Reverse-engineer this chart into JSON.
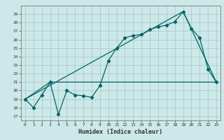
{
  "xlabel": "Humidex (Indice chaleur)",
  "bg_color": "#cce8e8",
  "grid_color": "#aacccc",
  "line_color": "#006666",
  "xlim": [
    -0.5,
    23.5
  ],
  "ylim": [
    16.5,
    30.0
  ],
  "yticks": [
    17,
    18,
    19,
    20,
    21,
    22,
    23,
    24,
    25,
    26,
    27,
    28,
    29
  ],
  "xticks": [
    0,
    1,
    2,
    3,
    4,
    5,
    6,
    7,
    8,
    9,
    10,
    11,
    12,
    13,
    14,
    15,
    16,
    17,
    18,
    19,
    20,
    21,
    22,
    23
  ],
  "series1_x": [
    0,
    1,
    2,
    3,
    4,
    5,
    6,
    7,
    8,
    9,
    10,
    11,
    12,
    13,
    14,
    15,
    16,
    17,
    18,
    19,
    20,
    21,
    22,
    23
  ],
  "series1_y": [
    19.0,
    18.0,
    19.5,
    21.0,
    17.2,
    20.0,
    19.5,
    19.4,
    19.2,
    20.6,
    23.5,
    25.0,
    26.2,
    26.5,
    26.6,
    27.2,
    27.5,
    27.7,
    28.1,
    29.3,
    27.3,
    26.2,
    22.5,
    21.0
  ],
  "series2_x": [
    0,
    3,
    23
  ],
  "series2_y": [
    19.0,
    21.0,
    21.0
  ],
  "series3_x": [
    0,
    19,
    23
  ],
  "series3_y": [
    19.0,
    29.3,
    21.0
  ],
  "label_fontsize": 5.5,
  "xlabel_fontsize": 6.0
}
